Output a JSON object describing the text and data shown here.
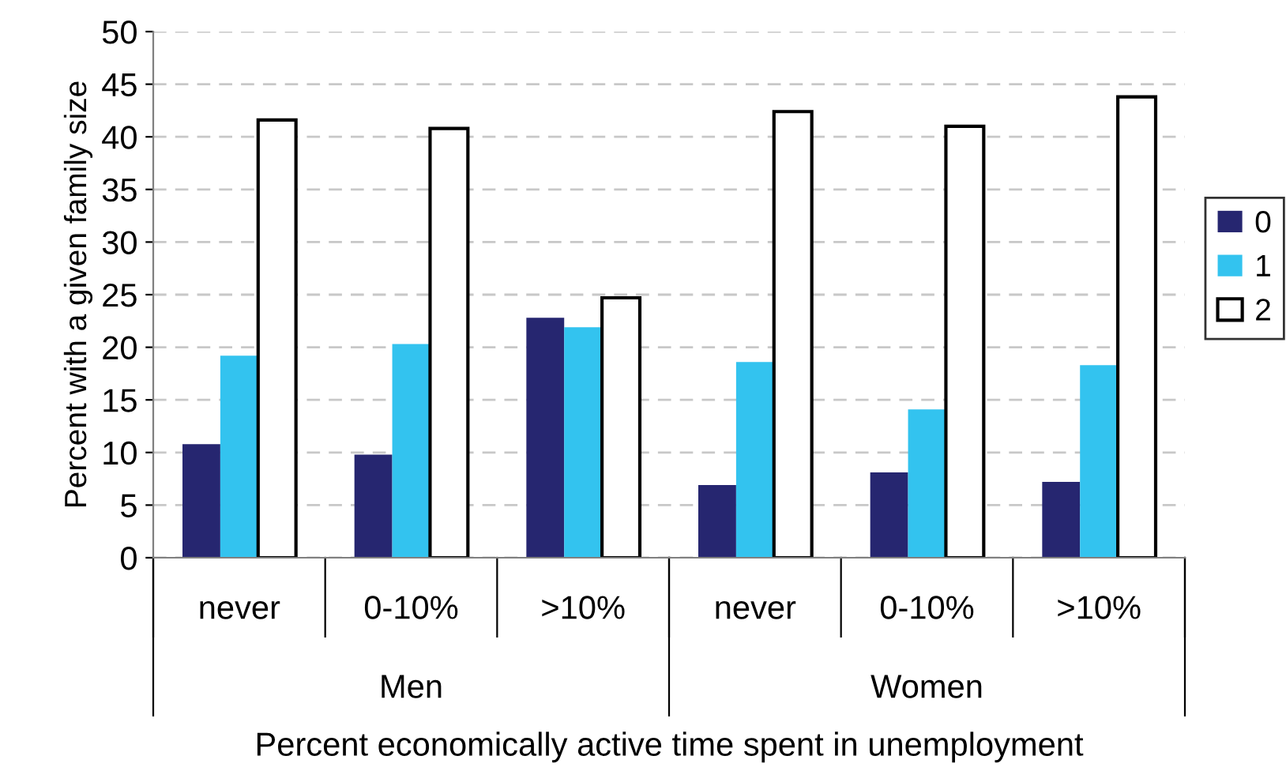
{
  "chart_data": {
    "type": "bar",
    "xlabel": "Percent economically active time spent in unemployment",
    "ylabel": "Percent with a given family size",
    "categories": [
      "never",
      "0-10%",
      ">10%",
      "never",
      "0-10%",
      ">10%"
    ],
    "annotations": [
      "Men",
      "Women"
    ],
    "series": [
      {
        "name": "0",
        "color": "#262670",
        "values": [
          10.8,
          9.8,
          22.8,
          6.9,
          8.1,
          7.2
        ]
      },
      {
        "name": "1",
        "color": "#33c3ef",
        "values": [
          19.2,
          20.3,
          21.9,
          18.6,
          14.1,
          18.3
        ]
      },
      {
        "name": "2",
        "color": "#ffffff",
        "values": [
          41.6,
          40.8,
          24.7,
          42.4,
          41.0,
          43.8
        ]
      }
    ],
    "ylim": [
      0,
      50
    ],
    "yticks": [
      0,
      5,
      10,
      15,
      20,
      25,
      30,
      35,
      40,
      45,
      50
    ],
    "grid": "y",
    "legend": "right"
  }
}
